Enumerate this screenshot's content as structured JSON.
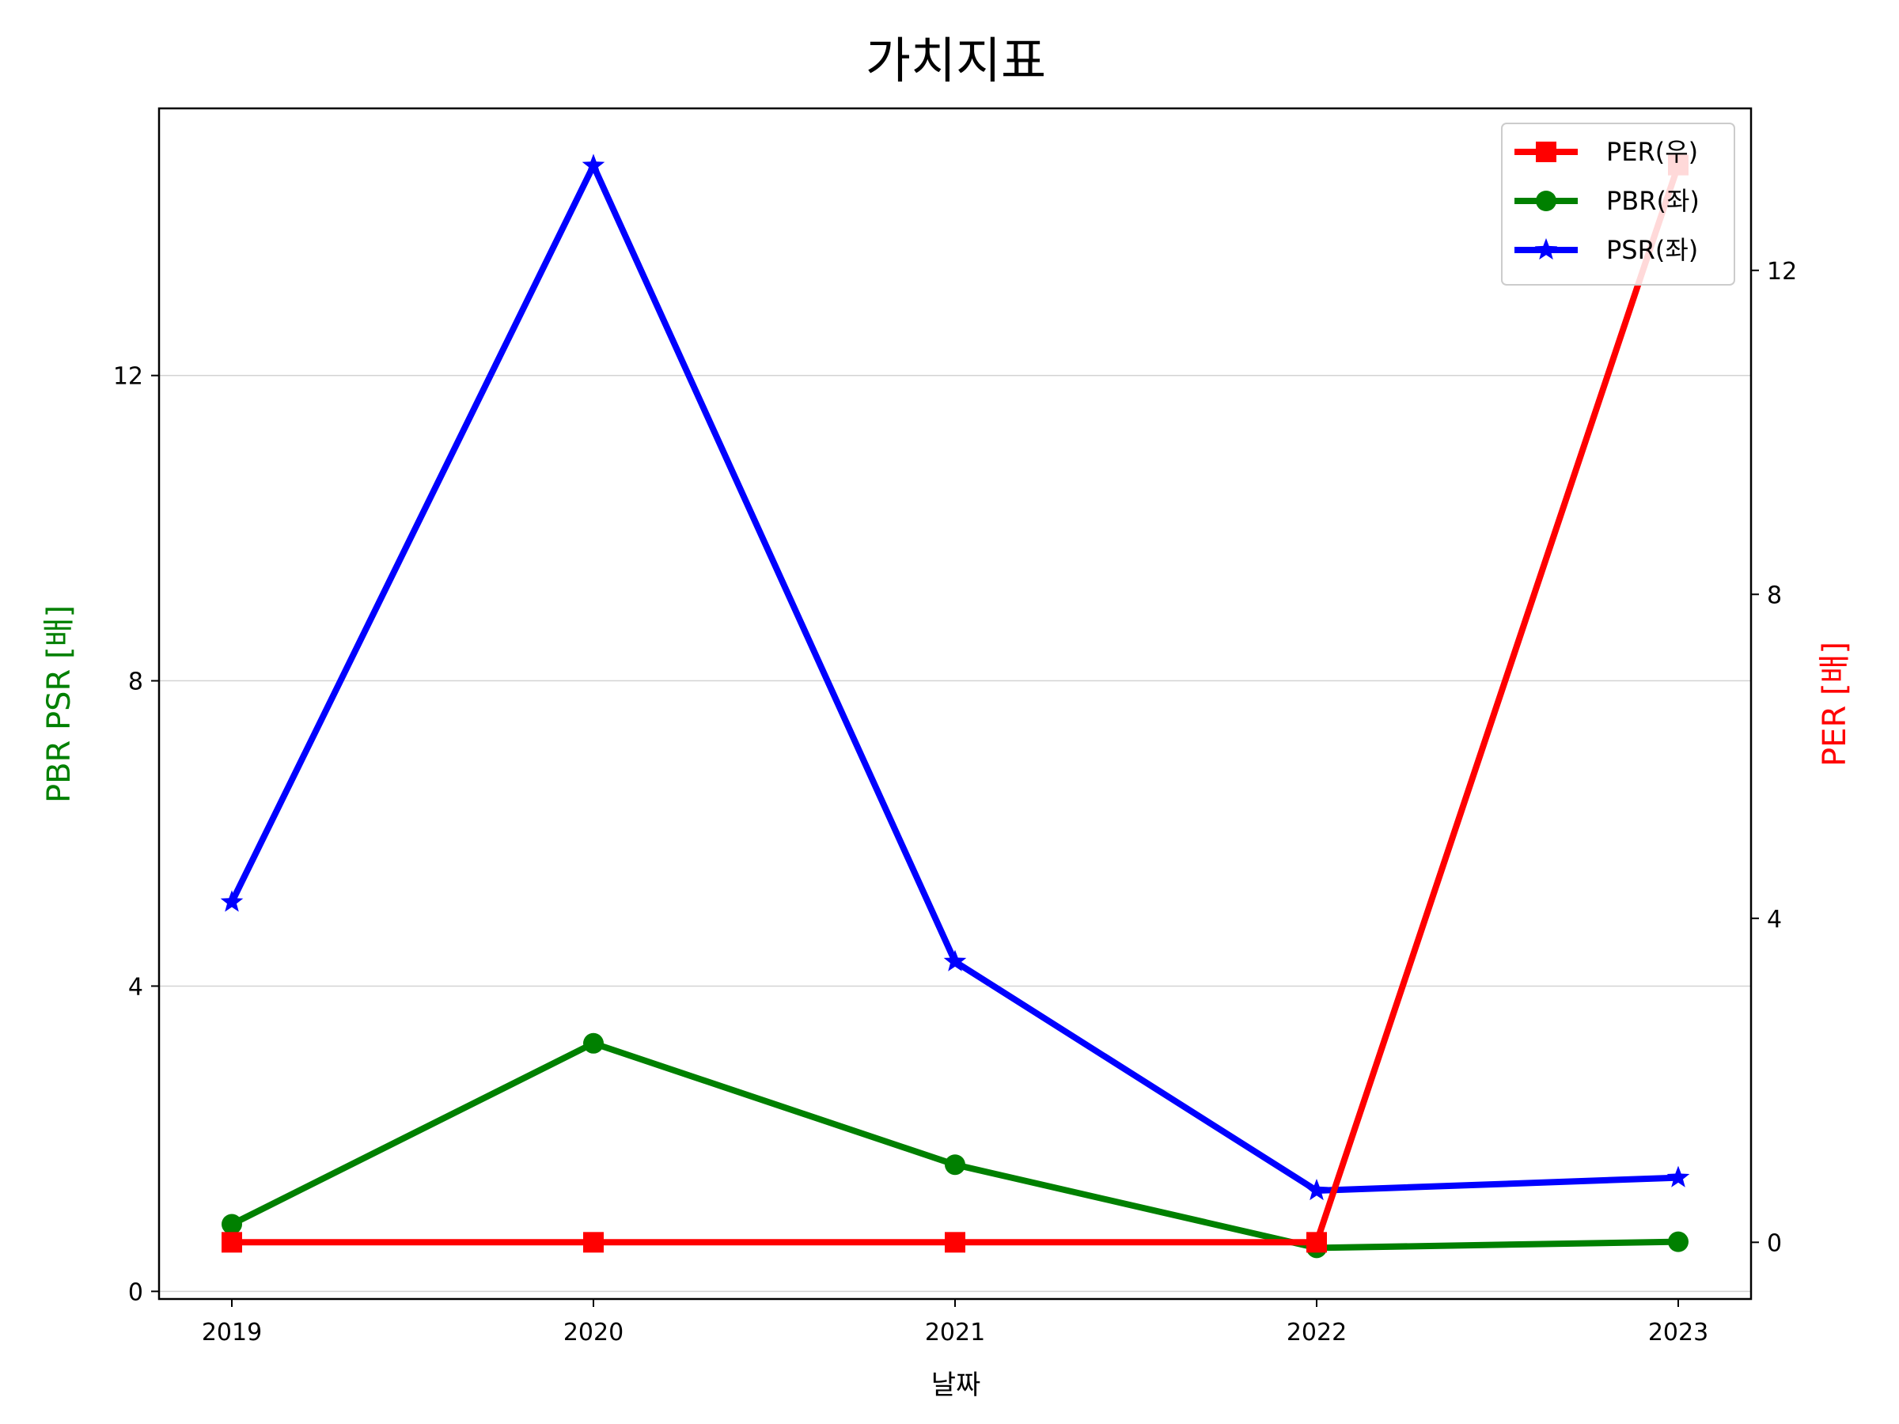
{
  "chart_data": {
    "type": "line",
    "title": "가치지표",
    "xlabel": "날짜",
    "ylabel_left": "PBR PSR [배]",
    "ylabel_right": "PER [배]",
    "colors": {
      "left_label": "#008000",
      "right_label": "#ff0000",
      "PER": "#ff0000",
      "PBR": "#008000",
      "PSR": "#0000ff",
      "grid": "#d3d3d3"
    },
    "categories": [
      "2019",
      "2020",
      "2021",
      "2022",
      "2023"
    ],
    "ylim_left": [
      -0.1,
      15.5
    ],
    "ylim_right": [
      -0.7,
      14.0
    ],
    "yticks_left": [
      "0",
      "4",
      "8",
      "12"
    ],
    "yticks_right": [
      "0",
      "4",
      "8",
      "12"
    ],
    "grid": "horizontal",
    "legend": "top-right",
    "series": [
      {
        "name": "PER(우)",
        "axis": "right",
        "marker": "square",
        "color": "#ff0000",
        "values": [
          0.0,
          0.0,
          0.0,
          0.0,
          13.3
        ]
      },
      {
        "name": "PBR(좌)",
        "axis": "left",
        "marker": "circle",
        "color": "#008000",
        "values": [
          0.88,
          3.25,
          1.66,
          0.57,
          0.65
        ]
      },
      {
        "name": "PSR(좌)",
        "axis": "left",
        "marker": "star",
        "color": "#0000ff",
        "values": [
          5.1,
          14.75,
          4.32,
          1.32,
          1.49
        ]
      }
    ]
  }
}
